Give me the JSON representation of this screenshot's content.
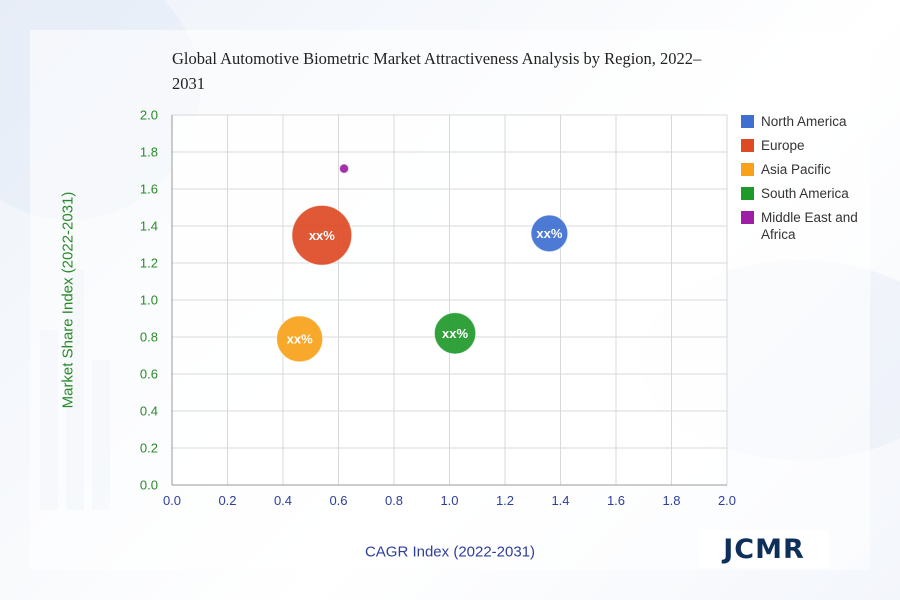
{
  "colors": {
    "north_america": "#3e6fd1",
    "europe": "#dd4a24",
    "asia_pacific": "#f7a21a",
    "south_america": "#1f9a2a",
    "middle_east_africa": "#9c1fa5",
    "tick": "#2f3e9e",
    "ylabel": "#2a8a2a",
    "grid": "#d9d9d9"
  },
  "brand": {
    "logo_text": "JCMR"
  },
  "chart_data": {
    "type": "scatter",
    "title": "Global Automotive Biometric Market Attractiveness Analysis by Region, 2022–2031",
    "xlabel": "CAGR Index (2022-2031)",
    "ylabel": "Market Share Index (2022-2031)",
    "xlim": [
      0,
      2
    ],
    "ylim": [
      0,
      2
    ],
    "xticks": [
      "0.0",
      "0.2",
      "0.4",
      "0.6",
      "0.8",
      "1.0",
      "1.2",
      "1.4",
      "1.6",
      "1.8",
      "2.0"
    ],
    "yticks": [
      "0.0",
      "0.2",
      "0.4",
      "0.6",
      "0.8",
      "1.0",
      "1.2",
      "1.4",
      "1.6",
      "1.8",
      "2.0"
    ],
    "grid": true,
    "legend_position": "right",
    "series": [
      {
        "name": "North America",
        "x": 1.36,
        "y": 1.36,
        "size": 4,
        "label": "xx%",
        "color": "#3e6fd1"
      },
      {
        "name": "Europe",
        "x": 0.54,
        "y": 1.35,
        "size": 6.5,
        "label": "xx%",
        "color": "#dd4a24"
      },
      {
        "name": "Asia Pacific",
        "x": 0.46,
        "y": 0.79,
        "size": 5,
        "label": "xx%",
        "color": "#f7a21a"
      },
      {
        "name": "South America",
        "x": 1.02,
        "y": 0.82,
        "size": 4.5,
        "label": "xx%",
        "color": "#1f9a2a"
      },
      {
        "name": "Middle East and Africa",
        "x": 0.62,
        "y": 1.71,
        "size": 1,
        "label": "",
        "color": "#9c1fa5"
      }
    ]
  }
}
